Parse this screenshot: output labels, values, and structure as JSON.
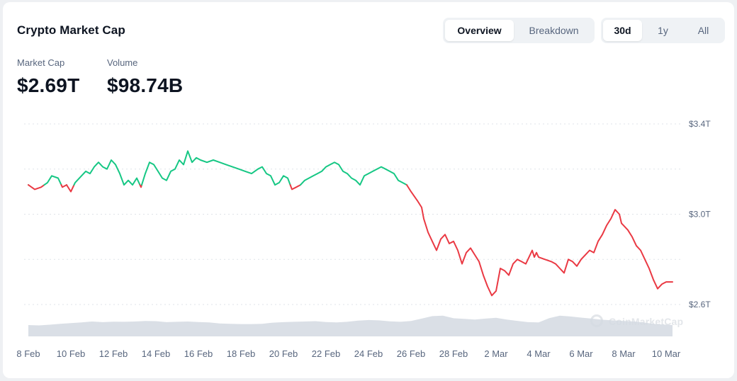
{
  "header": {
    "title": "Crypto Market Cap",
    "view_tabs": [
      {
        "label": "Overview",
        "active": true
      },
      {
        "label": "Breakdown",
        "active": false
      }
    ],
    "range_tabs": [
      {
        "label": "30d",
        "active": true
      },
      {
        "label": "1y",
        "active": false
      },
      {
        "label": "All",
        "active": false
      }
    ]
  },
  "stats": {
    "market_cap": {
      "label": "Market Cap",
      "value": "$2.69T"
    },
    "volume": {
      "label": "Volume",
      "value": "$98.74B"
    }
  },
  "watermark": {
    "text": "CoinMarketCap",
    "icon": "coinmarketcap-logo-icon"
  },
  "colors": {
    "up": "#16c784",
    "down": "#ea3943",
    "volume_fill": "#d4d9e2",
    "grid": "#dfe3e8",
    "label": "#58667e"
  },
  "chart_data": {
    "type": "line",
    "x_tick_labels": [
      "8 Feb",
      "10 Feb",
      "12 Feb",
      "14 Feb",
      "16 Feb",
      "18 Feb",
      "20 Feb",
      "22 Feb",
      "24 Feb",
      "26 Feb",
      "28 Feb",
      "2 Mar",
      "4 Mar",
      "6 Mar",
      "8 Mar",
      "10 Mar"
    ],
    "y_tick_labels": [
      "$3.4T",
      "$3.0T",
      "$2.6T"
    ],
    "y_ticks": [
      3.4,
      3.0,
      2.6
    ],
    "ylim": [
      2.6,
      3.4
    ],
    "baseline": 3.13,
    "xlim_days": [
      0,
      30.3
    ],
    "series": [
      {
        "values_trillions": [
          [
            0.0,
            3.13
          ],
          [
            0.3,
            3.11
          ],
          [
            0.6,
            3.12
          ],
          [
            0.9,
            3.14
          ],
          [
            1.1,
            3.17
          ],
          [
            1.4,
            3.16
          ],
          [
            1.6,
            3.12
          ],
          [
            1.8,
            3.13
          ],
          [
            2.0,
            3.1
          ],
          [
            2.2,
            3.14
          ],
          [
            2.5,
            3.17
          ],
          [
            2.7,
            3.19
          ],
          [
            2.9,
            3.18
          ],
          [
            3.1,
            3.21
          ],
          [
            3.3,
            3.23
          ],
          [
            3.5,
            3.21
          ],
          [
            3.7,
            3.2
          ],
          [
            3.9,
            3.24
          ],
          [
            4.1,
            3.22
          ],
          [
            4.3,
            3.18
          ],
          [
            4.5,
            3.13
          ],
          [
            4.7,
            3.15
          ],
          [
            4.9,
            3.13
          ],
          [
            5.1,
            3.16
          ],
          [
            5.3,
            3.12
          ],
          [
            5.5,
            3.18
          ],
          [
            5.7,
            3.23
          ],
          [
            5.9,
            3.22
          ],
          [
            6.1,
            3.19
          ],
          [
            6.3,
            3.16
          ],
          [
            6.5,
            3.15
          ],
          [
            6.7,
            3.19
          ],
          [
            6.9,
            3.2
          ],
          [
            7.1,
            3.24
          ],
          [
            7.3,
            3.22
          ],
          [
            7.5,
            3.28
          ],
          [
            7.7,
            3.23
          ],
          [
            7.9,
            3.25
          ],
          [
            8.1,
            3.24
          ],
          [
            8.4,
            3.23
          ],
          [
            8.7,
            3.24
          ],
          [
            9.0,
            3.23
          ],
          [
            9.3,
            3.22
          ],
          [
            9.6,
            3.21
          ],
          [
            9.9,
            3.2
          ],
          [
            10.2,
            3.19
          ],
          [
            10.5,
            3.18
          ],
          [
            10.8,
            3.2
          ],
          [
            11.0,
            3.21
          ],
          [
            11.2,
            3.18
          ],
          [
            11.4,
            3.17
          ],
          [
            11.6,
            3.13
          ],
          [
            11.8,
            3.14
          ],
          [
            12.0,
            3.17
          ],
          [
            12.2,
            3.16
          ],
          [
            12.4,
            3.11
          ],
          [
            12.6,
            3.12
          ],
          [
            12.8,
            3.13
          ],
          [
            13.0,
            3.15
          ],
          [
            13.2,
            3.16
          ],
          [
            13.4,
            3.17
          ],
          [
            13.6,
            3.18
          ],
          [
            13.8,
            3.19
          ],
          [
            14.0,
            3.21
          ],
          [
            14.2,
            3.22
          ],
          [
            14.4,
            3.23
          ],
          [
            14.6,
            3.22
          ],
          [
            14.8,
            3.19
          ],
          [
            15.0,
            3.18
          ],
          [
            15.2,
            3.16
          ],
          [
            15.4,
            3.15
          ],
          [
            15.6,
            3.13
          ],
          [
            15.8,
            3.17
          ],
          [
            16.0,
            3.18
          ],
          [
            16.2,
            3.19
          ],
          [
            16.4,
            3.2
          ],
          [
            16.6,
            3.21
          ],
          [
            16.8,
            3.2
          ],
          [
            17.0,
            3.19
          ],
          [
            17.2,
            3.18
          ],
          [
            17.4,
            3.15
          ],
          [
            17.6,
            3.14
          ],
          [
            17.8,
            3.13
          ],
          [
            18.0,
            3.1
          ],
          [
            18.3,
            3.06
          ],
          [
            18.5,
            3.03
          ],
          [
            18.6,
            2.98
          ],
          [
            18.8,
            2.92
          ],
          [
            19.0,
            2.88
          ],
          [
            19.2,
            2.84
          ],
          [
            19.4,
            2.89
          ],
          [
            19.6,
            2.91
          ],
          [
            19.8,
            2.87
          ],
          [
            20.0,
            2.88
          ],
          [
            20.2,
            2.84
          ],
          [
            20.4,
            2.78
          ],
          [
            20.6,
            2.83
          ],
          [
            20.8,
            2.85
          ],
          [
            21.0,
            2.82
          ],
          [
            21.2,
            2.79
          ],
          [
            21.4,
            2.73
          ],
          [
            21.6,
            2.68
          ],
          [
            21.8,
            2.64
          ],
          [
            22.0,
            2.66
          ],
          [
            22.1,
            2.71
          ],
          [
            22.2,
            2.76
          ],
          [
            22.4,
            2.75
          ],
          [
            22.6,
            2.73
          ],
          [
            22.8,
            2.78
          ],
          [
            23.0,
            2.8
          ],
          [
            23.2,
            2.79
          ],
          [
            23.4,
            2.78
          ],
          [
            23.6,
            2.82
          ],
          [
            23.7,
            2.84
          ],
          [
            23.8,
            2.81
          ],
          [
            23.9,
            2.83
          ],
          [
            24.0,
            2.81
          ],
          [
            24.3,
            2.8
          ],
          [
            24.6,
            2.79
          ],
          [
            24.8,
            2.78
          ],
          [
            25.0,
            2.76
          ],
          [
            25.2,
            2.74
          ],
          [
            25.4,
            2.8
          ],
          [
            25.6,
            2.79
          ],
          [
            25.8,
            2.77
          ],
          [
            26.0,
            2.8
          ],
          [
            26.2,
            2.82
          ],
          [
            26.4,
            2.84
          ],
          [
            26.6,
            2.83
          ],
          [
            26.8,
            2.88
          ],
          [
            27.0,
            2.91
          ],
          [
            27.2,
            2.95
          ],
          [
            27.4,
            2.98
          ],
          [
            27.6,
            3.02
          ],
          [
            27.8,
            3.0
          ],
          [
            27.9,
            2.96
          ],
          [
            28.0,
            2.95
          ],
          [
            28.2,
            2.93
          ],
          [
            28.4,
            2.9
          ],
          [
            28.6,
            2.86
          ],
          [
            28.8,
            2.84
          ],
          [
            29.0,
            2.8
          ],
          [
            29.2,
            2.76
          ],
          [
            29.4,
            2.71
          ],
          [
            29.6,
            2.67
          ],
          [
            29.8,
            2.69
          ],
          [
            30.0,
            2.7
          ],
          [
            30.3,
            2.7
          ]
        ]
      }
    ],
    "volume_series_billions": [
      [
        0.0,
        70
      ],
      [
        0.5,
        68
      ],
      [
        1.0,
        72
      ],
      [
        1.5,
        78
      ],
      [
        2.0,
        82
      ],
      [
        2.5,
        86
      ],
      [
        3.0,
        92
      ],
      [
        3.5,
        88
      ],
      [
        4.0,
        91
      ],
      [
        4.5,
        90
      ],
      [
        5.0,
        92
      ],
      [
        5.5,
        95
      ],
      [
        6.0,
        94
      ],
      [
        6.5,
        88
      ],
      [
        7.0,
        90
      ],
      [
        7.5,
        92
      ],
      [
        8.0,
        89
      ],
      [
        8.5,
        86
      ],
      [
        9.0,
        80
      ],
      [
        9.5,
        78
      ],
      [
        10.0,
        76
      ],
      [
        10.5,
        76
      ],
      [
        11.0,
        78
      ],
      [
        11.5,
        85
      ],
      [
        12.0,
        88
      ],
      [
        12.5,
        90
      ],
      [
        13.0,
        92
      ],
      [
        13.5,
        94
      ],
      [
        14.0,
        89
      ],
      [
        14.5,
        86
      ],
      [
        15.0,
        90
      ],
      [
        15.5,
        97
      ],
      [
        16.0,
        101
      ],
      [
        16.5,
        99
      ],
      [
        17.0,
        93
      ],
      [
        17.5,
        90
      ],
      [
        18.0,
        95
      ],
      [
        18.5,
        110
      ],
      [
        19.0,
        125
      ],
      [
        19.5,
        128
      ],
      [
        20.0,
        112
      ],
      [
        20.5,
        108
      ],
      [
        21.0,
        104
      ],
      [
        21.5,
        110
      ],
      [
        22.0,
        115
      ],
      [
        22.5,
        104
      ],
      [
        23.0,
        96
      ],
      [
        23.5,
        88
      ],
      [
        24.0,
        86
      ],
      [
        24.5,
        113
      ],
      [
        25.0,
        128
      ],
      [
        25.5,
        123
      ],
      [
        26.0,
        116
      ],
      [
        26.5,
        110
      ],
      [
        27.0,
        103
      ],
      [
        27.5,
        99
      ],
      [
        28.0,
        95
      ],
      [
        28.5,
        92
      ],
      [
        29.0,
        85
      ],
      [
        29.5,
        76
      ],
      [
        30.0,
        72
      ],
      [
        30.3,
        70
      ]
    ]
  }
}
